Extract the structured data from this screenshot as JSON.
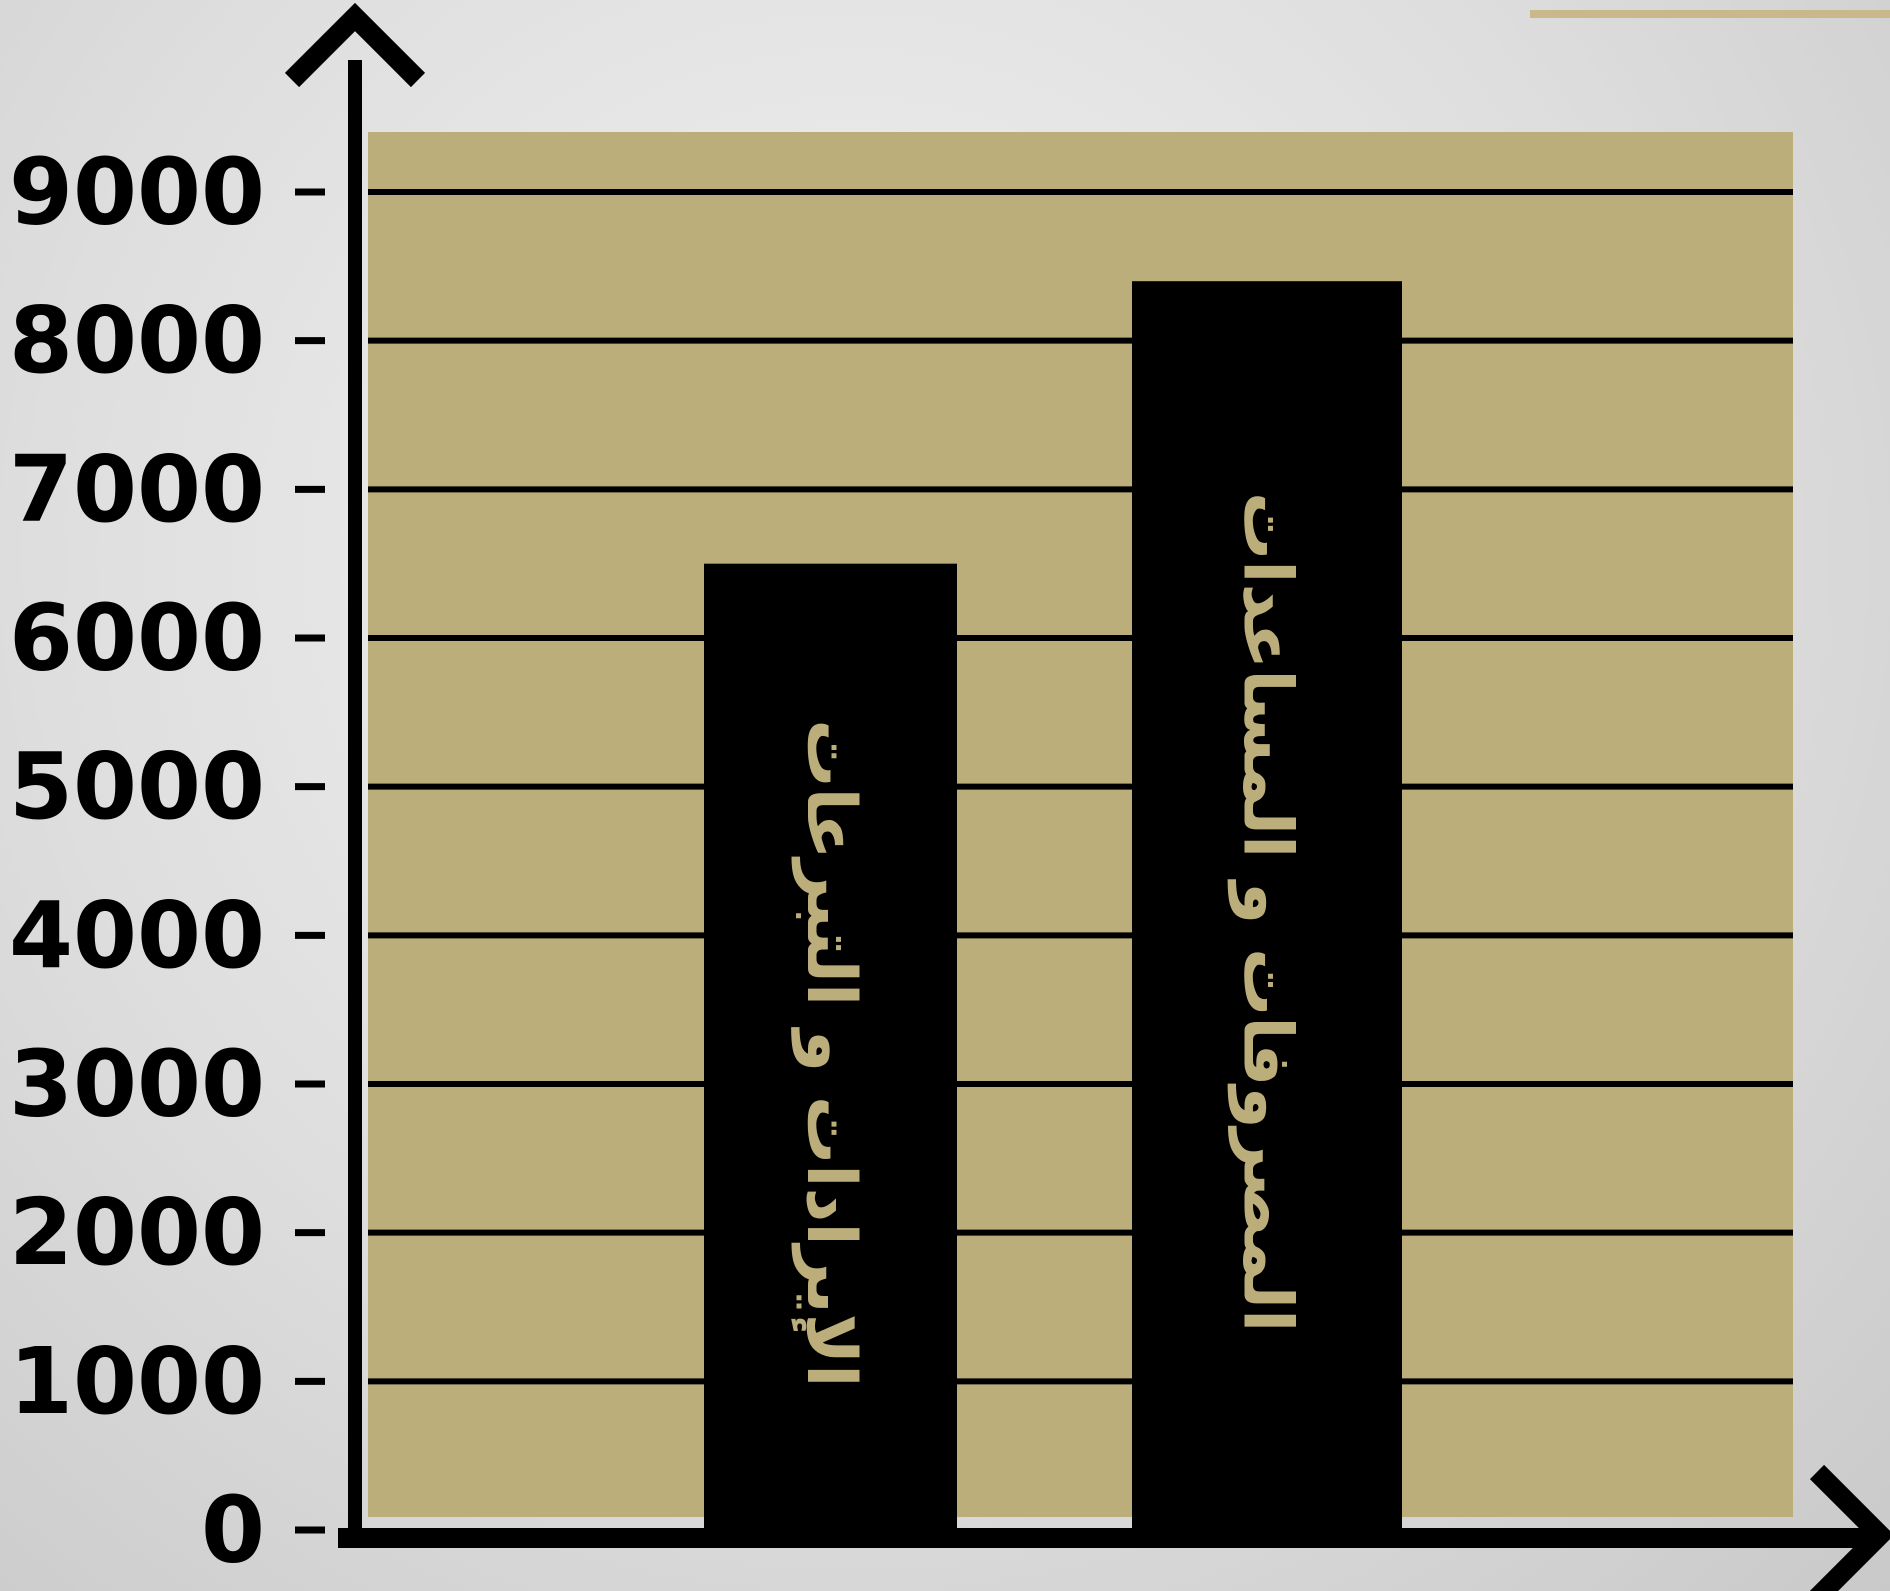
{
  "colors": {
    "plot_background": "#bcae7b",
    "bar": "#000000",
    "bar_label": "#bcae7b",
    "gridline": "#000000",
    "axis": "#000000",
    "accent_line": "#c9b98a"
  },
  "chart_data": {
    "type": "bar",
    "orientation": "vertical",
    "categories": [
      "الإيرادات و التبرعات",
      "المصروفات و المساعدات"
    ],
    "values": [
      6500,
      8400
    ],
    "ylim": [
      0,
      9000
    ],
    "yticks": [
      0,
      1000,
      2000,
      3000,
      4000,
      5000,
      6000,
      7000,
      8000,
      9000
    ],
    "ytick_labels": [
      "0",
      "1000",
      "2000",
      "3000",
      "4000",
      "5000",
      "6000",
      "7000",
      "8000",
      "9000"
    ],
    "category_labels_inside_bars": true,
    "grid": true,
    "title": "",
    "xlabel": "",
    "ylabel": ""
  }
}
